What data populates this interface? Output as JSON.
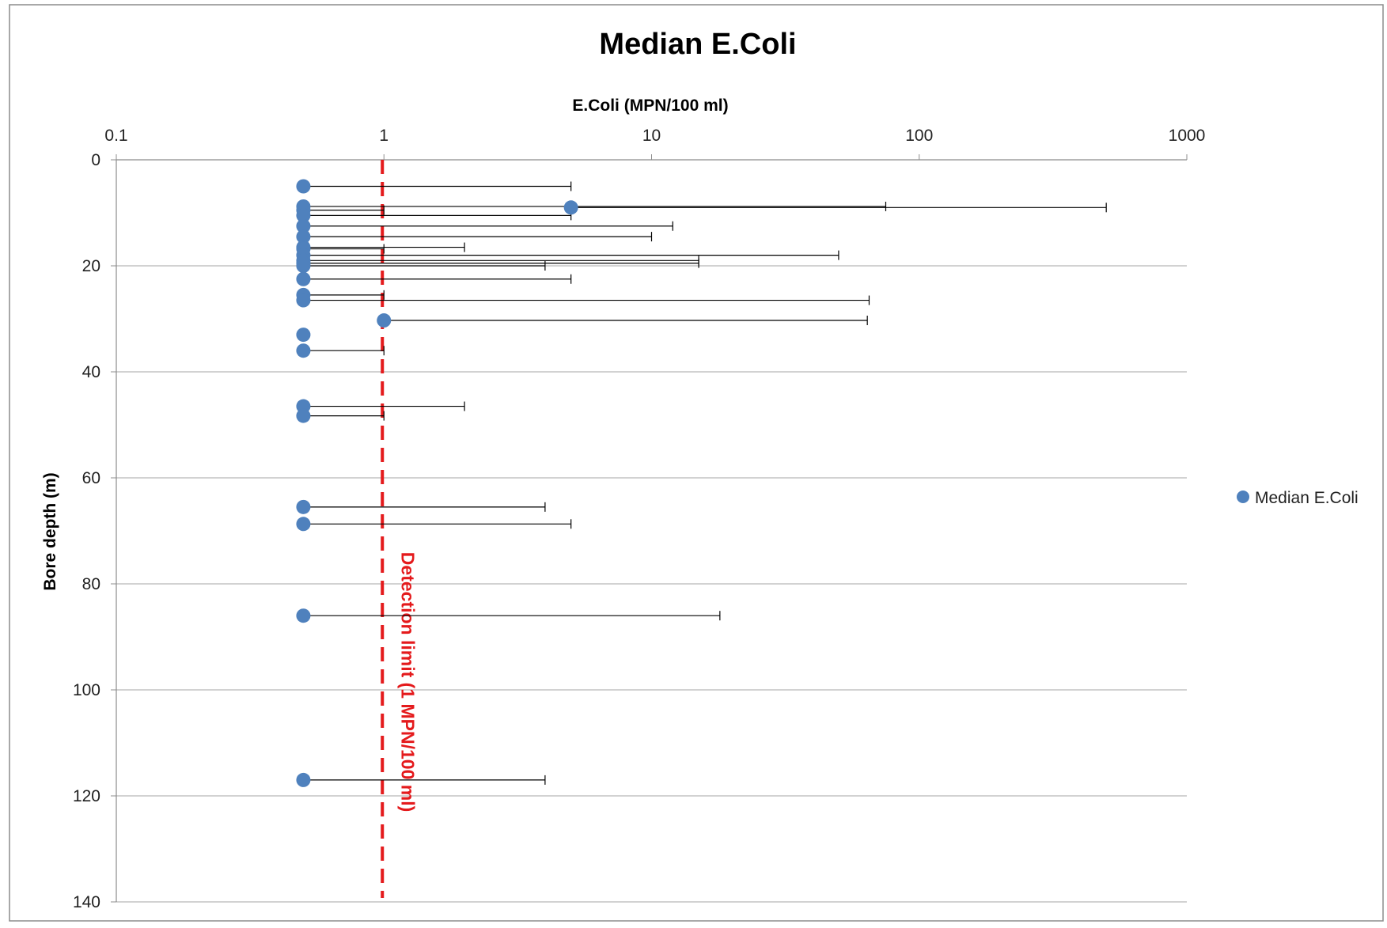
{
  "chart_data": {
    "type": "scatter",
    "title": "Median E.Coli",
    "xlabel": "E.Coli (MPN/100 ml)",
    "ylabel": "Bore depth (m)",
    "xscale": "log",
    "xlim": [
      0.1,
      1000
    ],
    "ylim": [
      0,
      140
    ],
    "y_inverted": true,
    "x_ticks": [
      "0.1",
      "1",
      "10",
      "100",
      "1000"
    ],
    "y_ticks": [
      "0",
      "20",
      "40",
      "60",
      "80",
      "100",
      "120",
      "140"
    ],
    "grid": "horizontal",
    "legend_position": "right",
    "series": [
      {
        "name": "Median E.Coli",
        "color": "#4f81bd",
        "points": [
          {
            "x": 0.5,
            "y": 5,
            "x_max": 5
          },
          {
            "x": 0.5,
            "y": 8.8,
            "x_max": 75
          },
          {
            "x": 5,
            "y": 9,
            "x_max": 500
          },
          {
            "x": 0.5,
            "y": 9.5,
            "x_max": 1
          },
          {
            "x": 0.5,
            "y": 10.5,
            "x_max": 5
          },
          {
            "x": 0.5,
            "y": 12.5,
            "x_max": 12
          },
          {
            "x": 0.5,
            "y": 14.5,
            "x_max": 10
          },
          {
            "x": 0.5,
            "y": 16.5,
            "x_max": 2
          },
          {
            "x": 0.5,
            "y": 16.8,
            "x_max": 1
          },
          {
            "x": 0.5,
            "y": 18,
            "x_max": 50
          },
          {
            "x": 0.5,
            "y": 19,
            "x_max": 15
          },
          {
            "x": 0.5,
            "y": 19.5,
            "x_max": 15
          },
          {
            "x": 0.5,
            "y": 20,
            "x_max": 4
          },
          {
            "x": 0.5,
            "y": 22.5,
            "x_max": 5
          },
          {
            "x": 0.5,
            "y": 25.5,
            "x_max": 1
          },
          {
            "x": 0.5,
            "y": 26.5,
            "x_max": 65
          },
          {
            "x": 1,
            "y": 30.3,
            "x_max": 64
          },
          {
            "x": 0.5,
            "y": 33,
            "x_max": null
          },
          {
            "x": 0.5,
            "y": 36,
            "x_max": 1
          },
          {
            "x": 0.5,
            "y": 46.5,
            "x_max": 2
          },
          {
            "x": 0.5,
            "y": 48.3,
            "x_max": 1
          },
          {
            "x": 0.5,
            "y": 65.5,
            "x_max": 4
          },
          {
            "x": 0.5,
            "y": 68.7,
            "x_max": 5
          },
          {
            "x": 0.5,
            "y": 86,
            "x_max": 18
          },
          {
            "x": 0.5,
            "y": 117,
            "x_max": 4
          }
        ]
      }
    ],
    "reference_line": {
      "x": 1,
      "color": "#e41a1c",
      "style": "dashed",
      "label": "Detection limit (1 MPN/100 ml)"
    }
  }
}
